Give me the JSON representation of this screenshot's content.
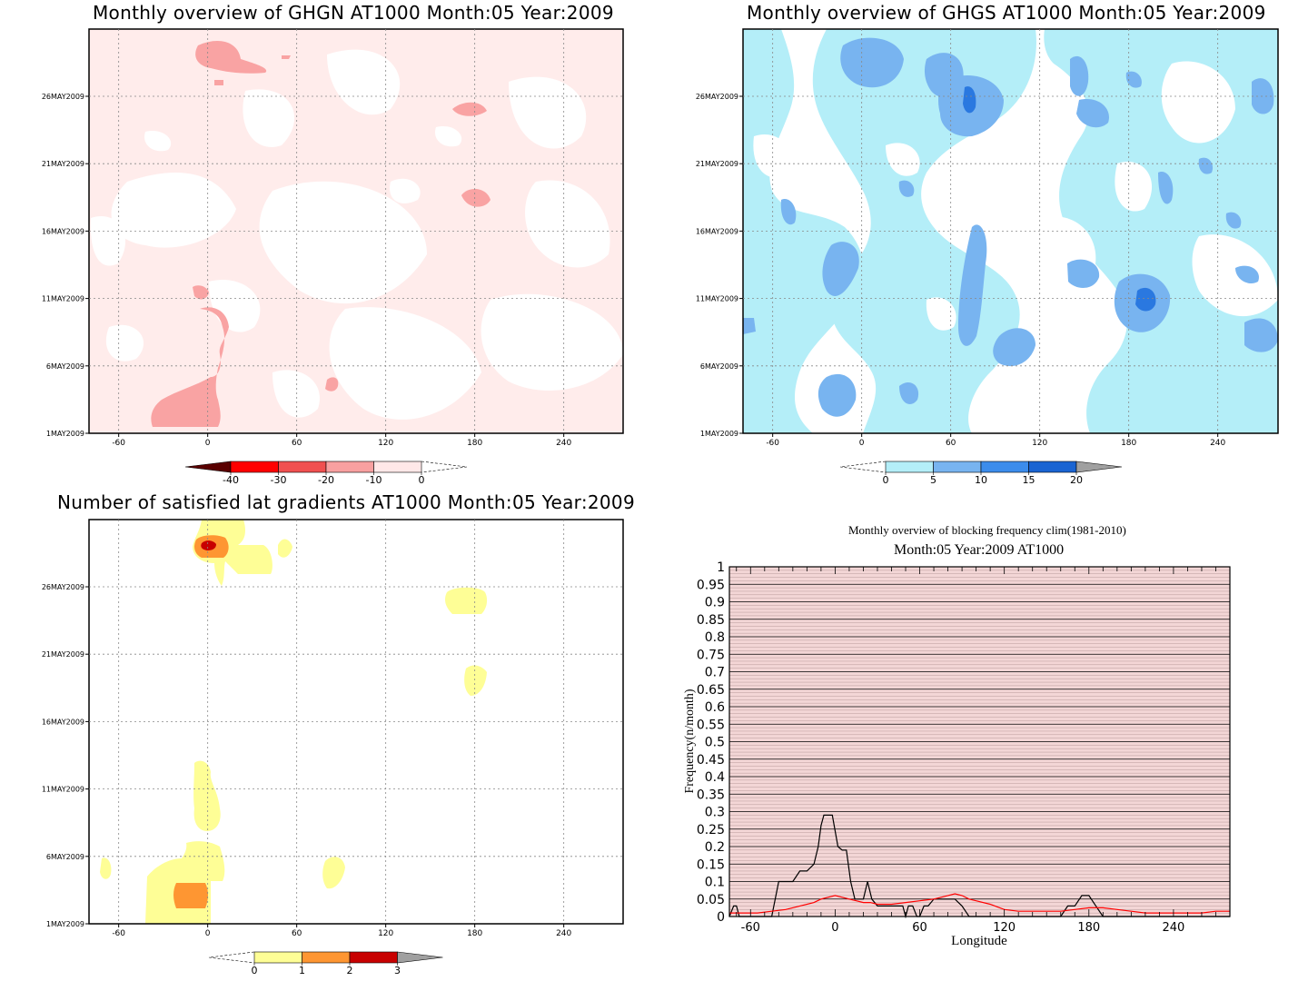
{
  "panels": [
    {
      "id": "ghgn",
      "title": "Monthly overview of GHGN AT1000 Month:05 Year:2009",
      "xaxis": {
        "ticks": [
          -60,
          0,
          60,
          120,
          180,
          240
        ],
        "range": [
          -80,
          280
        ]
      },
      "yaxis": {
        "ticks": [
          "1MAY2009",
          "6MAY2009",
          "11MAY2009",
          "16MAY2009",
          "21MAY2009",
          "26MAY2009"
        ]
      },
      "colorbar": {
        "labels": [
          "-40",
          "-30",
          "-20",
          "-10",
          "0"
        ],
        "colors": [
          "#5a0000",
          "#ff0000",
          "#f05050",
          "#f8a0a0",
          "#ffe8e8"
        ],
        "extend": "both"
      },
      "field_colors": {
        "background": "#ffeceb",
        "level_1": "#f9a3a3"
      }
    },
    {
      "id": "ghgs",
      "title": "Monthly overview of GHGS AT1000 Month:05 Year:2009",
      "xaxis": {
        "ticks": [
          -60,
          0,
          60,
          120,
          180,
          240
        ],
        "range": [
          -80,
          280
        ]
      },
      "yaxis": {
        "ticks": [
          "1MAY2009",
          "6MAY2009",
          "11MAY2009",
          "16MAY2009",
          "21MAY2009",
          "26MAY2009"
        ]
      },
      "colorbar": {
        "labels": [
          "0",
          "5",
          "10",
          "15",
          "20"
        ],
        "colors": [
          "#b4eef8",
          "#78b4f0",
          "#3c8ceb",
          "#1a64d2",
          "#a0a0a0"
        ],
        "extend": "both"
      },
      "field_colors": {
        "level_1": "#b4eef8",
        "level_2": "#78b4f0",
        "level_3": "#2a78e0"
      }
    },
    {
      "id": "gradients",
      "title": "Number of satisfied lat gradients AT1000 Month:05 Year:2009",
      "xaxis": {
        "ticks": [
          -60,
          0,
          60,
          120,
          180,
          240
        ],
        "range": [
          -80,
          280
        ]
      },
      "yaxis": {
        "ticks": [
          "1MAY2009",
          "6MAY2009",
          "11MAY2009",
          "16MAY2009",
          "21MAY2009",
          "26MAY2009"
        ]
      },
      "colorbar": {
        "labels": [
          "0",
          "1",
          "2",
          "3"
        ],
        "colors": [
          "#fefe96",
          "#fe9632",
          "#c80000",
          "#a0a0a0"
        ],
        "extend": "both"
      }
    }
  ],
  "chart_data": {
    "type": "line",
    "title": "Monthly overview of blocking frequency clim(1981-2010)",
    "subtitle": "Month:05 Year:2009  AT1000",
    "xlabel": "Longitude",
    "ylabel": "Frequency(n/month)",
    "xlim": [
      -75,
      280
    ],
    "ylim": [
      0,
      1
    ],
    "xticks": [
      -60,
      0,
      60,
      120,
      180,
      240
    ],
    "yticks": [
      "0",
      "0.05",
      "0.1",
      "0.15",
      "0.2",
      "0.25",
      "0.3",
      "0.35",
      "0.4",
      "0.45",
      "0.5",
      "0.55",
      "0.6",
      "0.65",
      "0.7",
      "0.75",
      "0.8",
      "0.85",
      "0.9",
      "0.95",
      "1"
    ],
    "grid": true,
    "background": "#f3d6d6",
    "series": [
      {
        "color": "#000000",
        "x": [
          -75,
          -72,
          -70,
          -68,
          -66,
          -63,
          -60,
          -55,
          -50,
          -45,
          -40,
          -35,
          -30,
          -25,
          -20,
          -15,
          -12,
          -10,
          -8,
          -5,
          -2,
          2,
          5,
          8,
          11,
          14,
          17,
          20,
          23,
          26,
          30,
          35,
          40,
          45,
          48,
          50,
          52,
          55,
          58,
          60,
          63,
          66,
          70,
          75,
          80,
          85,
          90,
          95,
          100,
          105,
          110,
          120,
          130,
          140,
          150,
          155,
          160,
          165,
          170,
          175,
          180,
          185,
          190,
          195,
          200,
          210,
          220,
          230,
          240,
          250,
          260,
          270,
          280
        ],
        "y": [
          0,
          0.03,
          0.03,
          0,
          0,
          0,
          0,
          0,
          0,
          0,
          0.1,
          0.1,
          0.1,
          0.13,
          0.13,
          0.15,
          0.2,
          0.26,
          0.29,
          0.29,
          0.29,
          0.2,
          0.19,
          0.19,
          0.1,
          0.05,
          0.05,
          0.05,
          0.1,
          0.05,
          0.03,
          0.03,
          0.03,
          0.03,
          0.03,
          0,
          0.03,
          0.03,
          0,
          0,
          0.03,
          0.03,
          0.05,
          0.05,
          0.05,
          0.05,
          0.03,
          0,
          0,
          0,
          0,
          0,
          0,
          0,
          0,
          0,
          0,
          0.03,
          0.03,
          0.06,
          0.06,
          0.03,
          0,
          0,
          0,
          0,
          0,
          0,
          0,
          0,
          0,
          0,
          0
        ]
      },
      {
        "color": "#ff0000",
        "x": [
          -75,
          -65,
          -55,
          -45,
          -35,
          -25,
          -15,
          -10,
          -5,
          0,
          5,
          10,
          15,
          20,
          25,
          30,
          40,
          50,
          60,
          70,
          80,
          85,
          90,
          95,
          100,
          110,
          120,
          130,
          140,
          150,
          160,
          170,
          180,
          190,
          200,
          210,
          220,
          230,
          240,
          250,
          260,
          270,
          280
        ],
        "y": [
          0.01,
          0.01,
          0.01,
          0.015,
          0.02,
          0.03,
          0.04,
          0.05,
          0.055,
          0.06,
          0.055,
          0.05,
          0.045,
          0.04,
          0.04,
          0.035,
          0.035,
          0.04,
          0.045,
          0.05,
          0.06,
          0.065,
          0.06,
          0.05,
          0.045,
          0.035,
          0.02,
          0.015,
          0.015,
          0.015,
          0.015,
          0.02,
          0.025,
          0.025,
          0.02,
          0.015,
          0.01,
          0.01,
          0.01,
          0.01,
          0.01,
          0.015,
          0.015
        ]
      }
    ]
  }
}
